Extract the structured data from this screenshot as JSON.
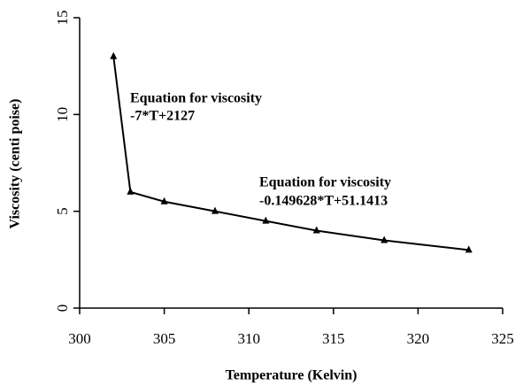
{
  "chart_data": {
    "type": "line",
    "xlabel": "Temperature (Kelvin)",
    "ylabel": "Viscosity (centi poise)",
    "x": [
      302,
      303,
      305,
      308,
      311,
      314,
      318,
      323
    ],
    "series": [
      {
        "color": "#000000",
        "values": [
          13,
          6,
          5.5,
          5,
          4.5,
          4,
          3.5,
          3
        ]
      }
    ],
    "xlim": [
      300,
      325
    ],
    "xticks": [
      300,
      305,
      310,
      315,
      320,
      325
    ],
    "ylim": [
      0,
      15
    ],
    "yticks": [
      0,
      5,
      10,
      15
    ],
    "annotations": [
      "Equation for viscosity",
      "-7*T+2127",
      "Equation for viscosity",
      "-0.149628*T+51.1413"
    ]
  }
}
